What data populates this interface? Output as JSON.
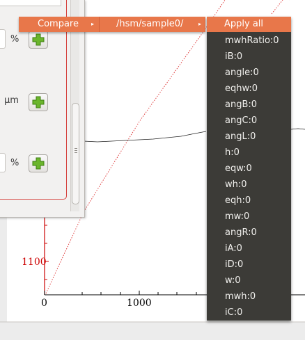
{
  "menubar": {
    "compare_label": "Compare",
    "path_label": "/hsm/sample0/"
  },
  "value_menu": {
    "header_label": "Apply all",
    "items": [
      "mwhRatio:0",
      "iB:0",
      "angle:0",
      "eqhw:0",
      "angB:0",
      "angC:0",
      "angL:0",
      "h:0",
      "eqw:0",
      "wh:0",
      "eqh:0",
      "mw:0",
      "angR:0",
      "iA:0",
      "iD:0",
      "w:0",
      "mwh:0",
      "iC:0"
    ]
  },
  "settings": {
    "field1_unit": "%",
    "field2_unit": "µm",
    "field3_unit": "%"
  },
  "plot": {
    "y_tick_label": "1100",
    "x_tick_labels": [
      "0",
      "1000"
    ]
  },
  "colors": {
    "accent": "#e8774a",
    "menu_bg": "#3c3b37",
    "axis_red": "#cc0000",
    "green_plus": "#6bb52c"
  }
}
